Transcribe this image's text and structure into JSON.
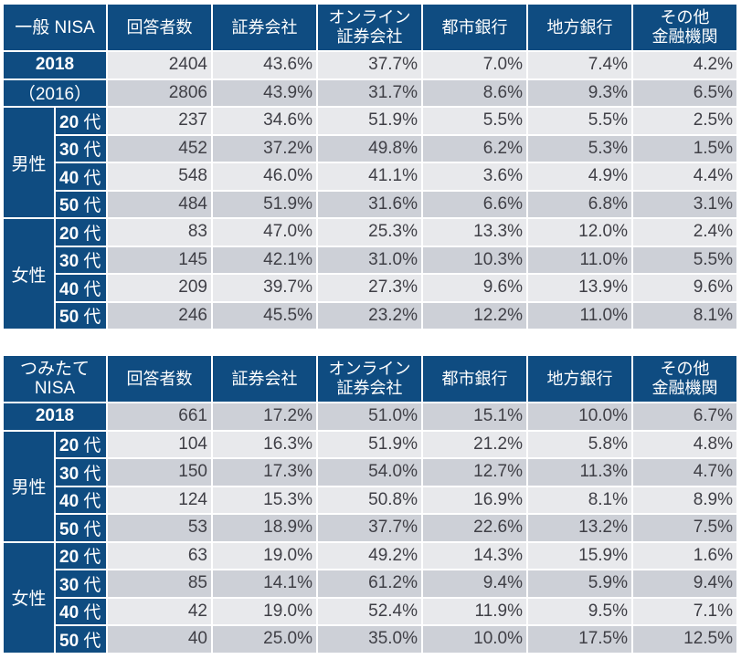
{
  "colors": {
    "header": "#0f4c81",
    "row_light": "#e8e9ec",
    "row_dark": "#cdd0d7",
    "text": "#3f3f46"
  },
  "chart_data": [
    {
      "type": "table",
      "title": "一般 NISA",
      "columns": [
        "回答者数",
        "証券会社",
        "オンライン\n証券会社",
        "都市銀行",
        "地方銀行",
        "その他\n金融機関"
      ],
      "rows": [
        {
          "label": "2018",
          "values": [
            "2404",
            "43.6%",
            "37.7%",
            "7.0%",
            "7.4%",
            "4.2%"
          ]
        },
        {
          "label": "（2016）",
          "values": [
            "2806",
            "43.9%",
            "31.7%",
            "8.6%",
            "9.3%",
            "6.5%"
          ]
        },
        {
          "group": "男性",
          "label": "20 代",
          "values": [
            "237",
            "34.6%",
            "51.9%",
            "5.5%",
            "5.5%",
            "2.5%"
          ]
        },
        {
          "group": "男性",
          "label": "30 代",
          "values": [
            "452",
            "37.2%",
            "49.8%",
            "6.2%",
            "5.3%",
            "1.5%"
          ]
        },
        {
          "group": "男性",
          "label": "40 代",
          "values": [
            "548",
            "46.0%",
            "41.1%",
            "3.6%",
            "4.9%",
            "4.4%"
          ]
        },
        {
          "group": "男性",
          "label": "50 代",
          "values": [
            "484",
            "51.9%",
            "31.6%",
            "6.6%",
            "6.8%",
            "3.1%"
          ]
        },
        {
          "group": "女性",
          "label": "20 代",
          "values": [
            "83",
            "47.0%",
            "25.3%",
            "13.3%",
            "12.0%",
            "2.4%"
          ]
        },
        {
          "group": "女性",
          "label": "30 代",
          "values": [
            "145",
            "42.1%",
            "31.0%",
            "10.3%",
            "11.0%",
            "5.5%"
          ]
        },
        {
          "group": "女性",
          "label": "40 代",
          "values": [
            "209",
            "39.7%",
            "27.3%",
            "9.6%",
            "13.9%",
            "9.6%"
          ]
        },
        {
          "group": "女性",
          "label": "50 代",
          "values": [
            "246",
            "45.5%",
            "23.2%",
            "12.2%",
            "11.0%",
            "8.1%"
          ]
        }
      ]
    },
    {
      "type": "table",
      "title": "つみたて\nNISA",
      "columns": [
        "回答者数",
        "証券会社",
        "オンライン\n証券会社",
        "都市銀行",
        "地方銀行",
        "その他\n金融機関"
      ],
      "rows": [
        {
          "label": "2018",
          "values": [
            "661",
            "17.2%",
            "51.0%",
            "15.1%",
            "10.0%",
            "6.7%"
          ]
        },
        {
          "group": "男性",
          "label": "20 代",
          "values": [
            "104",
            "16.3%",
            "51.9%",
            "21.2%",
            "5.8%",
            "4.8%"
          ]
        },
        {
          "group": "男性",
          "label": "30 代",
          "values": [
            "150",
            "17.3%",
            "54.0%",
            "12.7%",
            "11.3%",
            "4.7%"
          ]
        },
        {
          "group": "男性",
          "label": "40 代",
          "values": [
            "124",
            "15.3%",
            "50.8%",
            "16.9%",
            "8.1%",
            "8.9%"
          ]
        },
        {
          "group": "男性",
          "label": "50 代",
          "values": [
            "53",
            "18.9%",
            "37.7%",
            "22.6%",
            "13.2%",
            "7.5%"
          ]
        },
        {
          "group": "女性",
          "label": "20 代",
          "values": [
            "63",
            "19.0%",
            "49.2%",
            "14.3%",
            "15.9%",
            "1.6%"
          ]
        },
        {
          "group": "女性",
          "label": "30 代",
          "values": [
            "85",
            "14.1%",
            "61.2%",
            "9.4%",
            "5.9%",
            "9.4%"
          ]
        },
        {
          "group": "女性",
          "label": "40 代",
          "values": [
            "42",
            "19.0%",
            "52.4%",
            "11.9%",
            "9.5%",
            "7.1%"
          ]
        },
        {
          "group": "女性",
          "label": "50 代",
          "values": [
            "40",
            "25.0%",
            "35.0%",
            "10.0%",
            "17.5%",
            "12.5%"
          ]
        }
      ]
    }
  ]
}
